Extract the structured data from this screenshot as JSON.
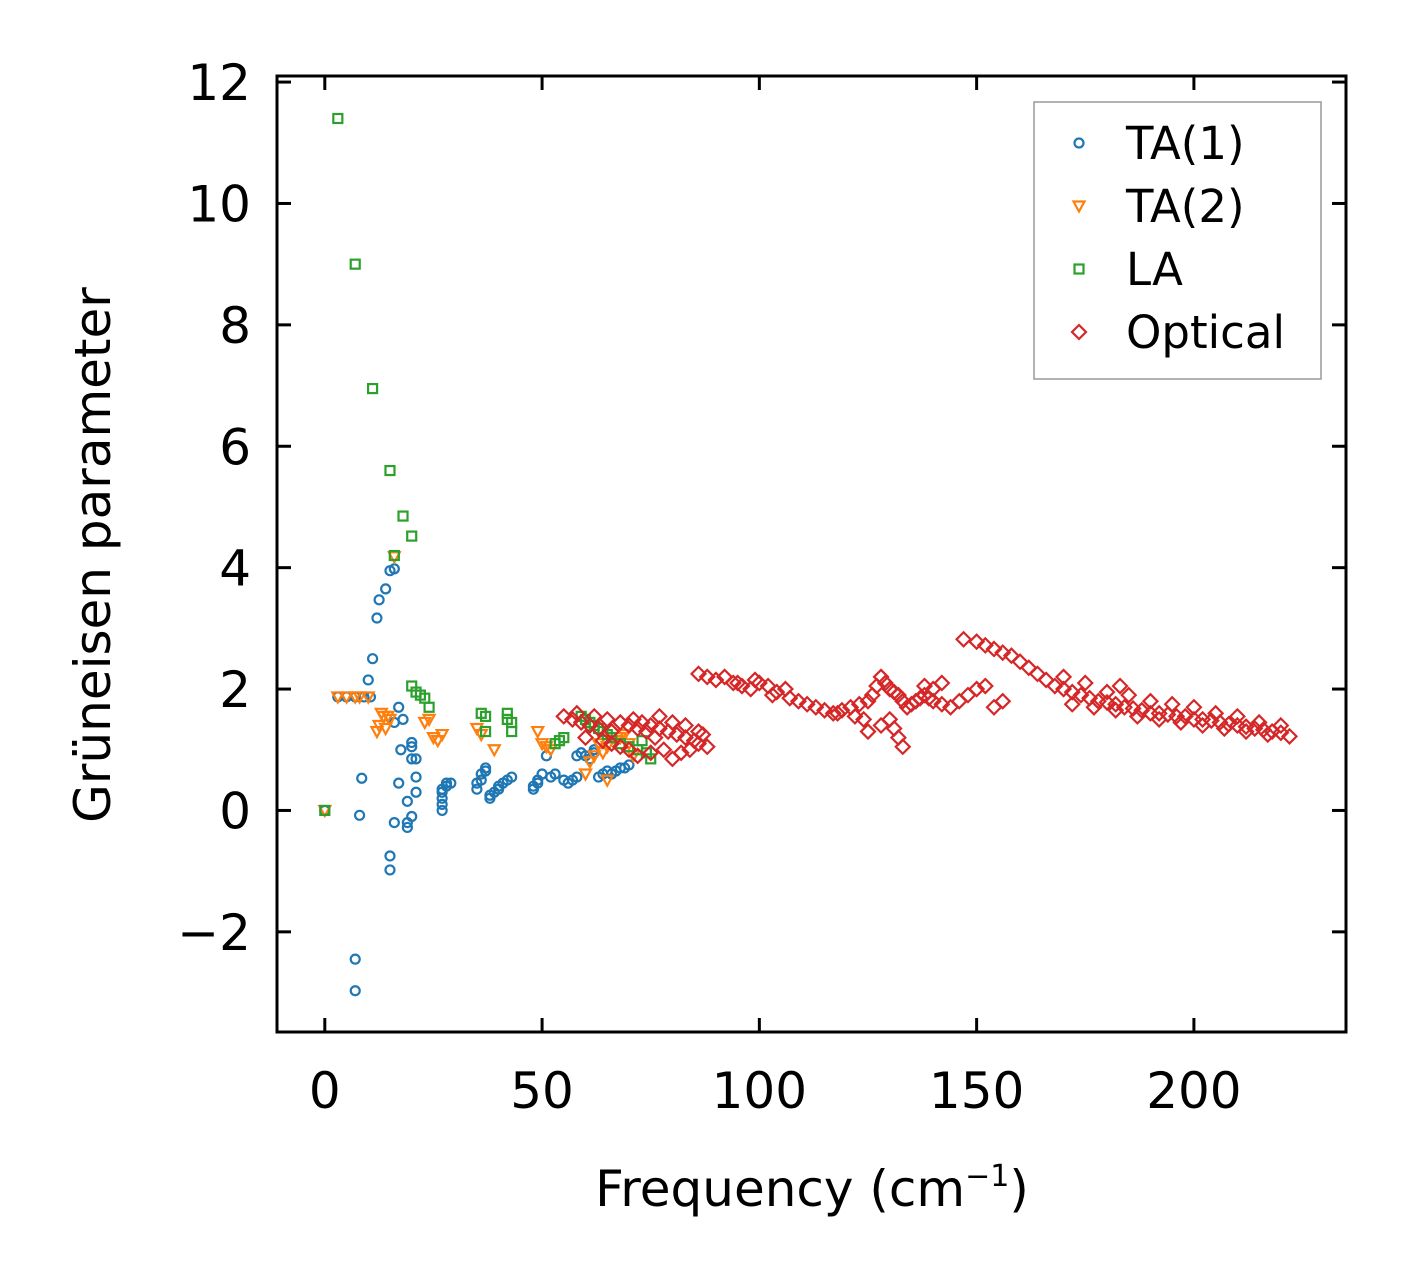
{
  "chart_data": {
    "type": "scatter",
    "xlabel": "Frequency (cm",
    "xlabel_sup": "−1",
    "xlabel_close": ")",
    "ylabel": "Grüneisen parameter",
    "xlim": [
      -11,
      235
    ],
    "ylim": [
      -3.65,
      12.1
    ],
    "xticks": [
      0,
      50,
      100,
      150,
      200
    ],
    "yticks": [
      -2,
      0,
      2,
      4,
      6,
      8,
      10,
      12
    ],
    "ytick_labels": [
      "−2",
      "0",
      "2",
      "4",
      "6",
      "8",
      "10",
      "12"
    ],
    "grid": false,
    "legend_position": "top-right",
    "series": [
      {
        "name": "TA(1)",
        "color": "#1f77b4",
        "marker": "circle",
        "points": [
          [
            0,
            0
          ],
          [
            3,
            1.87
          ],
          [
            5,
            1.87
          ],
          [
            7,
            1.87
          ],
          [
            9,
            1.87
          ],
          [
            10.5,
            1.87
          ],
          [
            7,
            -2.45
          ],
          [
            7,
            -2.97
          ],
          [
            8,
            -0.08
          ],
          [
            8.5,
            0.53
          ],
          [
            10,
            2.15
          ],
          [
            11,
            2.5
          ],
          [
            12,
            3.17
          ],
          [
            12.5,
            3.47
          ],
          [
            14,
            3.65
          ],
          [
            15,
            3.95
          ],
          [
            16,
            3.98
          ],
          [
            15,
            -0.75
          ],
          [
            15,
            -0.98
          ],
          [
            16,
            -0.2
          ],
          [
            16,
            1.45
          ],
          [
            17,
            1.7
          ],
          [
            17.5,
            1.0
          ],
          [
            17,
            0.45
          ],
          [
            18,
            1.5
          ],
          [
            19,
            -0.2
          ],
          [
            19,
            -0.28
          ],
          [
            19,
            0.15
          ],
          [
            20,
            0.85
          ],
          [
            20,
            1.05
          ],
          [
            20,
            1.12
          ],
          [
            20,
            -0.1
          ],
          [
            21,
            0.3
          ],
          [
            21,
            0.55
          ],
          [
            21,
            0.85
          ],
          [
            27,
            0.0
          ],
          [
            27,
            0.1
          ],
          [
            27,
            0.2
          ],
          [
            27,
            0.3
          ],
          [
            27,
            0.35
          ],
          [
            28,
            0.4
          ],
          [
            28,
            0.45
          ],
          [
            29,
            0.45
          ],
          [
            35,
            0.35
          ],
          [
            35,
            0.45
          ],
          [
            36,
            0.5
          ],
          [
            36,
            0.6
          ],
          [
            37,
            0.65
          ],
          [
            37,
            0.7
          ],
          [
            38,
            0.2
          ],
          [
            38,
            0.25
          ],
          [
            39,
            0.3
          ],
          [
            40,
            0.35
          ],
          [
            40,
            0.4
          ],
          [
            41,
            0.45
          ],
          [
            42,
            0.5
          ],
          [
            43,
            0.55
          ],
          [
            48,
            0.35
          ],
          [
            48,
            0.4
          ],
          [
            49,
            0.45
          ],
          [
            49,
            0.5
          ],
          [
            50,
            0.6
          ],
          [
            51,
            0.9
          ],
          [
            52,
            0.55
          ],
          [
            53,
            0.6
          ],
          [
            55,
            0.5
          ],
          [
            56,
            0.45
          ],
          [
            57,
            0.5
          ],
          [
            58,
            0.55
          ],
          [
            58,
            0.9
          ],
          [
            59,
            0.95
          ],
          [
            60,
            0.9
          ],
          [
            61,
            0.85
          ],
          [
            62,
            0.95
          ],
          [
            62,
            1.0
          ],
          [
            63,
            0.55
          ],
          [
            64,
            0.6
          ],
          [
            65,
            0.65
          ],
          [
            66,
            0.6
          ],
          [
            67,
            0.65
          ],
          [
            68,
            0.7
          ],
          [
            69,
            0.7
          ],
          [
            70,
            0.75
          ]
        ]
      },
      {
        "name": "TA(2)",
        "color": "#ff7f0e",
        "marker": "triangle-down",
        "points": [
          [
            0,
            0
          ],
          [
            3,
            1.87
          ],
          [
            5,
            1.87
          ],
          [
            7,
            1.87
          ],
          [
            8,
            1.87
          ],
          [
            10,
            1.87
          ],
          [
            12,
            1.3
          ],
          [
            12.5,
            1.4
          ],
          [
            13,
            1.6
          ],
          [
            13.5,
            1.55
          ],
          [
            14,
            1.35
          ],
          [
            14.5,
            1.55
          ],
          [
            15,
            1.5
          ],
          [
            16,
            4.18
          ],
          [
            23,
            1.45
          ],
          [
            24,
            1.5
          ],
          [
            25,
            1.2
          ],
          [
            26,
            1.15
          ],
          [
            27,
            1.25
          ],
          [
            35,
            1.35
          ],
          [
            36,
            1.25
          ],
          [
            39,
            1.0
          ],
          [
            49,
            1.3
          ],
          [
            50,
            1.1
          ],
          [
            51,
            1.05
          ],
          [
            52,
            1.0
          ],
          [
            60,
            0.6
          ],
          [
            61,
            0.8
          ],
          [
            62,
            0.9
          ],
          [
            63,
            1.1
          ],
          [
            64,
            0.95
          ],
          [
            65,
            1.05
          ],
          [
            65,
            0.5
          ],
          [
            66,
            1.2
          ],
          [
            67,
            1.15
          ],
          [
            68,
            1.2
          ],
          [
            69,
            1.25
          ],
          [
            70,
            1.1
          ],
          [
            71,
            0.9
          ]
        ]
      },
      {
        "name": "LA",
        "color": "#2ca02c",
        "marker": "square",
        "points": [
          [
            0,
            0
          ],
          [
            3,
            11.4
          ],
          [
            7,
            9.0
          ],
          [
            11,
            6.95
          ],
          [
            15,
            5.6
          ],
          [
            18,
            4.85
          ],
          [
            20,
            4.52
          ],
          [
            16,
            4.2
          ],
          [
            20,
            2.05
          ],
          [
            21,
            1.95
          ],
          [
            22,
            1.9
          ],
          [
            23,
            1.85
          ],
          [
            24,
            1.7
          ],
          [
            36,
            1.6
          ],
          [
            37,
            1.55
          ],
          [
            37,
            1.3
          ],
          [
            42,
            1.6
          ],
          [
            42,
            1.5
          ],
          [
            43,
            1.45
          ],
          [
            43,
            1.3
          ],
          [
            53,
            1.1
          ],
          [
            54,
            1.15
          ],
          [
            55,
            1.2
          ],
          [
            59,
            1.55
          ],
          [
            60,
            1.5
          ],
          [
            61,
            1.45
          ],
          [
            62,
            1.4
          ],
          [
            63,
            1.35
          ],
          [
            64,
            1.3
          ],
          [
            65,
            1.25
          ],
          [
            66,
            1.2
          ],
          [
            68,
            1.1
          ],
          [
            70,
            1.05
          ],
          [
            72,
            1.0
          ],
          [
            73,
            1.15
          ],
          [
            74,
            0.95
          ],
          [
            75,
            0.85
          ]
        ]
      },
      {
        "name": "Optical",
        "color": "#d62728",
        "marker": "diamond",
        "points": [
          [
            55,
            1.55
          ],
          [
            57,
            1.5
          ],
          [
            59,
            1.45
          ],
          [
            61,
            1.4
          ],
          [
            63,
            1.35
          ],
          [
            58,
            1.6
          ],
          [
            62,
            1.55
          ],
          [
            65,
            1.5
          ],
          [
            60,
            1.2
          ],
          [
            64,
            1.15
          ],
          [
            66,
            1.1
          ],
          [
            68,
            1.05
          ],
          [
            70,
            1.0
          ],
          [
            66,
            1.3
          ],
          [
            68,
            1.45
          ],
          [
            70,
            1.4
          ],
          [
            72,
            1.35
          ],
          [
            74,
            1.3
          ],
          [
            76,
            1.2
          ],
          [
            71,
            1.5
          ],
          [
            73,
            1.45
          ],
          [
            75,
            1.4
          ],
          [
            77,
            1.35
          ],
          [
            79,
            1.3
          ],
          [
            81,
            1.25
          ],
          [
            83,
            1.2
          ],
          [
            85,
            1.15
          ],
          [
            86,
            1.1
          ],
          [
            88,
            1.05
          ],
          [
            72,
            0.9
          ],
          [
            75,
            0.95
          ],
          [
            78,
            1.0
          ],
          [
            80,
            0.85
          ],
          [
            82,
            0.95
          ],
          [
            84,
            1.0
          ],
          [
            77,
            1.55
          ],
          [
            80,
            1.45
          ],
          [
            83,
            1.4
          ],
          [
            86,
            1.3
          ],
          [
            87,
            1.25
          ],
          [
            86,
            2.25
          ],
          [
            88,
            2.2
          ],
          [
            90,
            2.15
          ],
          [
            92,
            2.2
          ],
          [
            94,
            2.1
          ],
          [
            96,
            2.05
          ],
          [
            98,
            2.0
          ],
          [
            100,
            2.1
          ],
          [
            102,
            2.05
          ],
          [
            104,
            1.95
          ],
          [
            106,
            2.0
          ],
          [
            95,
            2.1
          ],
          [
            99,
            2.15
          ],
          [
            103,
            1.9
          ],
          [
            107,
            1.85
          ],
          [
            109,
            1.8
          ],
          [
            111,
            1.75
          ],
          [
            113,
            1.7
          ],
          [
            115,
            1.65
          ],
          [
            117,
            1.6
          ],
          [
            119,
            1.65
          ],
          [
            121,
            1.7
          ],
          [
            123,
            1.75
          ],
          [
            125,
            1.8
          ],
          [
            126,
            1.9
          ],
          [
            127,
            2.05
          ],
          [
            128,
            2.2
          ],
          [
            129,
            2.1
          ],
          [
            130,
            2.0
          ],
          [
            131,
            1.95
          ],
          [
            132,
            1.9
          ],
          [
            133,
            1.8
          ],
          [
            134,
            1.7
          ],
          [
            135,
            1.75
          ],
          [
            136,
            1.8
          ],
          [
            137,
            1.85
          ],
          [
            138,
            1.9
          ],
          [
            139,
            1.85
          ],
          [
            140,
            1.8
          ],
          [
            142,
            1.75
          ],
          [
            144,
            1.7
          ],
          [
            146,
            1.8
          ],
          [
            148,
            1.9
          ],
          [
            150,
            2.0
          ],
          [
            152,
            2.05
          ],
          [
            154,
            1.7
          ],
          [
            156,
            1.8
          ],
          [
            125,
            1.3
          ],
          [
            128,
            1.4
          ],
          [
            130,
            1.5
          ],
          [
            132,
            1.2
          ],
          [
            133,
            1.05
          ],
          [
            131,
            1.35
          ],
          [
            118,
            1.6
          ],
          [
            122,
            1.55
          ],
          [
            124,
            1.5
          ],
          [
            140,
            2.0
          ],
          [
            142,
            2.1
          ],
          [
            138,
            2.05
          ],
          [
            147,
            2.82
          ],
          [
            150,
            2.78
          ],
          [
            152,
            2.72
          ],
          [
            154,
            2.66
          ],
          [
            156,
            2.6
          ],
          [
            158,
            2.55
          ],
          [
            160,
            2.45
          ],
          [
            162,
            2.35
          ],
          [
            164,
            2.25
          ],
          [
            166,
            2.15
          ],
          [
            168,
            2.05
          ],
          [
            170,
            2.0
          ],
          [
            172,
            1.95
          ],
          [
            174,
            1.9
          ],
          [
            176,
            1.85
          ],
          [
            178,
            1.8
          ],
          [
            180,
            1.78
          ],
          [
            182,
            1.75
          ],
          [
            184,
            1.7
          ],
          [
            186,
            1.68
          ],
          [
            188,
            1.65
          ],
          [
            190,
            1.6
          ],
          [
            192,
            1.6
          ],
          [
            194,
            1.58
          ],
          [
            196,
            1.55
          ],
          [
            198,
            1.55
          ],
          [
            200,
            1.5
          ],
          [
            202,
            1.5
          ],
          [
            204,
            1.48
          ],
          [
            206,
            1.45
          ],
          [
            208,
            1.42
          ],
          [
            210,
            1.4
          ],
          [
            212,
            1.38
          ],
          [
            214,
            1.35
          ],
          [
            216,
            1.33
          ],
          [
            218,
            1.3
          ],
          [
            220,
            1.28
          ],
          [
            222,
            1.22
          ],
          [
            170,
            2.2
          ],
          [
            175,
            2.1
          ],
          [
            180,
            1.95
          ],
          [
            185,
            1.9
          ],
          [
            190,
            1.8
          ],
          [
            195,
            1.75
          ],
          [
            200,
            1.7
          ],
          [
            205,
            1.6
          ],
          [
            210,
            1.55
          ],
          [
            215,
            1.45
          ],
          [
            220,
            1.4
          ],
          [
            172,
            1.75
          ],
          [
            177,
            1.7
          ],
          [
            182,
            1.65
          ],
          [
            187,
            1.55
          ],
          [
            192,
            1.5
          ],
          [
            197,
            1.45
          ],
          [
            202,
            1.4
          ],
          [
            207,
            1.35
          ],
          [
            212,
            1.3
          ],
          [
            217,
            1.25
          ],
          [
            183,
            2.05
          ]
        ]
      }
    ]
  }
}
